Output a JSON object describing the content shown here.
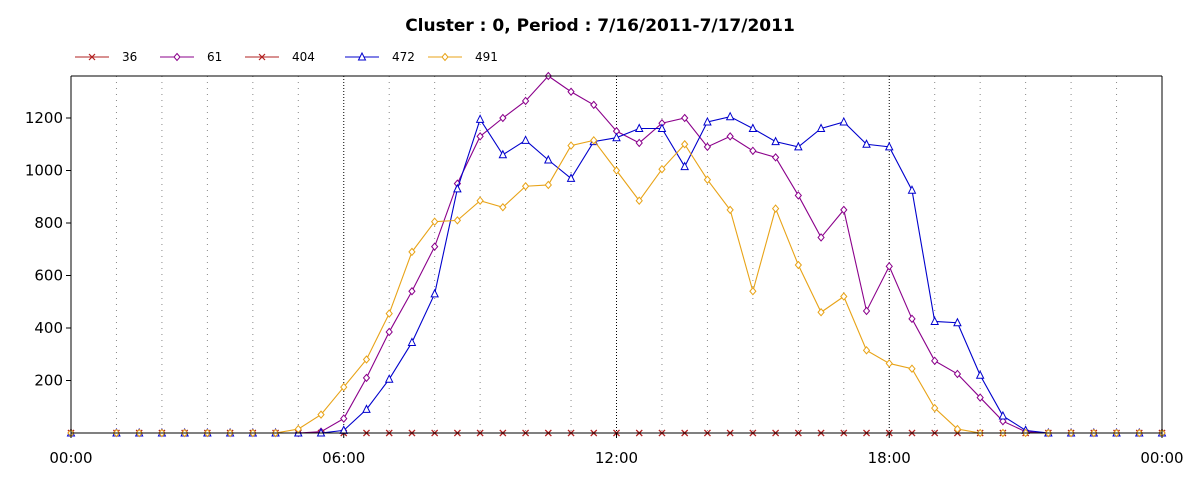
{
  "chart_data": {
    "type": "line",
    "title": "Cluster : 0, Period : 7/16/2011-7/17/2011",
    "xlabel": "",
    "ylabel": "",
    "x_ticks": [
      "00:00",
      "06:00",
      "12:00",
      "18:00",
      "00:00"
    ],
    "x_range_hours": [
      0,
      24
    ],
    "ylim": [
      0,
      1360
    ],
    "y_ticks": [
      200,
      400,
      600,
      800,
      1000,
      1200
    ],
    "grid": "vertical dotted",
    "legend_position": "top-left",
    "x": [
      0,
      1,
      1.5,
      2,
      2.5,
      3,
      3.5,
      4,
      4.5,
      5,
      5.5,
      6,
      6.5,
      7,
      7.5,
      8,
      8.5,
      9,
      9.5,
      10,
      10.5,
      11,
      11.5,
      12,
      12.5,
      13,
      13.5,
      14,
      14.5,
      15,
      15.5,
      16,
      16.5,
      17,
      17.5,
      18,
      18.5,
      19,
      19.5,
      20,
      20.5,
      21,
      21.5,
      22,
      22.5,
      23,
      23.5,
      24
    ],
    "series": [
      {
        "name": "36",
        "color": "#b22222",
        "marker": "x",
        "values": [
          0,
          0,
          0,
          0,
          0,
          0,
          0,
          0,
          0,
          0,
          0,
          0,
          0,
          0,
          0,
          0,
          0,
          0,
          0,
          0,
          0,
          0,
          0,
          0,
          0,
          0,
          0,
          0,
          0,
          0,
          0,
          0,
          0,
          0,
          0,
          0,
          0,
          0,
          0,
          0,
          0,
          0,
          0,
          0,
          0,
          0,
          0,
          0
        ]
      },
      {
        "name": "61",
        "color": "#8b008b",
        "marker": "diamond",
        "values": [
          0,
          0,
          0,
          0,
          0,
          0,
          0,
          0,
          0,
          0,
          5,
          55,
          210,
          385,
          540,
          710,
          950,
          1130,
          1200,
          1265,
          1360,
          1300,
          1250,
          1150,
          1105,
          1180,
          1200,
          1090,
          1130,
          1075,
          1050,
          905,
          745,
          850,
          465,
          635,
          435,
          275,
          225,
          135,
          45,
          5,
          0,
          0,
          0,
          0,
          0,
          0
        ]
      },
      {
        "name": "404",
        "color": "#b22222",
        "marker": "x",
        "values": [
          0,
          0,
          0,
          0,
          0,
          0,
          0,
          0,
          0,
          0,
          0,
          0,
          0,
          0,
          0,
          0,
          0,
          0,
          0,
          0,
          0,
          0,
          0,
          0,
          0,
          0,
          0,
          0,
          0,
          0,
          0,
          0,
          0,
          0,
          0,
          0,
          0,
          0,
          0,
          0,
          0,
          0,
          0,
          0,
          0,
          0,
          0,
          0
        ]
      },
      {
        "name": "472",
        "color": "#0000cd",
        "marker": "triangle",
        "values": [
          0,
          0,
          0,
          0,
          0,
          0,
          0,
          0,
          0,
          0,
          0,
          10,
          90,
          205,
          345,
          530,
          930,
          1195,
          1060,
          1115,
          1040,
          970,
          1110,
          1125,
          1160,
          1160,
          1015,
          1185,
          1205,
          1160,
          1110,
          1090,
          1160,
          1185,
          1100,
          1090,
          925,
          425,
          420,
          220,
          65,
          10,
          0,
          0,
          0,
          0,
          0,
          0
        ]
      },
      {
        "name": "491",
        "color": "#e8a317",
        "marker": "diamond",
        "values": [
          0,
          0,
          0,
          0,
          0,
          0,
          0,
          0,
          0,
          15,
          70,
          175,
          280,
          455,
          690,
          805,
          810,
          885,
          860,
          940,
          945,
          1095,
          1115,
          1000,
          885,
          1005,
          1100,
          965,
          850,
          540,
          855,
          640,
          460,
          520,
          315,
          265,
          245,
          95,
          15,
          0,
          0,
          0,
          0,
          0,
          0,
          0,
          0,
          0
        ]
      }
    ]
  }
}
